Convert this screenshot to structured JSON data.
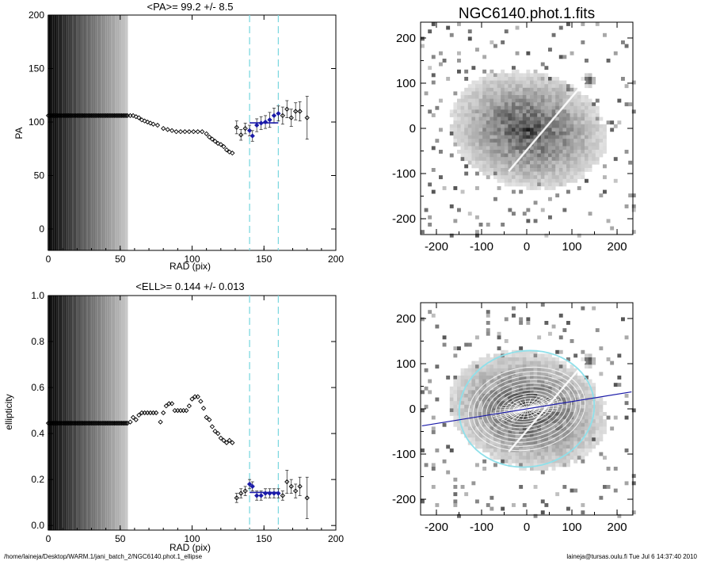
{
  "footer": {
    "left": "/home/laineja/Desktop/WARM.1/jani_batch_2/NGC6140.phot.1_ellipse",
    "right": "laineja@tursas.oulu.fi  Tue Jul  6 14:37:40 2010"
  },
  "colors": {
    "marker": "#000000",
    "fit_line": "#1a1aa8",
    "range_line": "#7fd8e0",
    "ellipse": "#8fe0ea"
  },
  "chart_data": [
    {
      "type": "scatter",
      "title": "<PA>=  99.2 +/-   8.5",
      "xlabel": "RAD (pix)",
      "ylabel": "PA",
      "xlim": [
        0,
        200
      ],
      "ylim": [
        -20,
        200
      ],
      "xticks": [
        "0",
        "50",
        "100",
        "150",
        "200"
      ],
      "yticks": [
        "0",
        "50",
        "100",
        "150",
        "200"
      ],
      "vlines": [
        140,
        160
      ],
      "fit": {
        "x": [
          140,
          160
        ],
        "y": 99.2
      },
      "series": [
        {
          "x": [
            0,
            1,
            2,
            3,
            4,
            5,
            6,
            7,
            8,
            9,
            10,
            11,
            12,
            13,
            14,
            15,
            16,
            17,
            18,
            19,
            20,
            21,
            22,
            23,
            24,
            25,
            26,
            27,
            28,
            29,
            30,
            31,
            32,
            33,
            34,
            35,
            36,
            37,
            38,
            39,
            40,
            41,
            42,
            43,
            44,
            45,
            46,
            47,
            48,
            49,
            50,
            51,
            52,
            53,
            54,
            55
          ],
          "y": [
            106,
            106,
            106,
            106,
            106,
            106,
            106,
            106,
            106,
            106,
            106,
            106,
            106,
            106,
            106,
            106,
            106,
            106,
            106,
            106,
            106,
            106,
            106,
            106,
            106,
            106,
            106,
            106,
            106,
            106,
            106,
            106,
            106,
            106,
            106,
            106,
            106,
            106,
            106,
            106,
            106,
            106,
            106,
            106,
            106,
            106,
            106,
            106,
            106,
            106,
            106,
            106,
            106,
            106,
            106,
            106
          ]
        },
        {
          "x": [
            57,
            59,
            61,
            63,
            65,
            67,
            69,
            71,
            73,
            76,
            80,
            83,
            86,
            89,
            92,
            95,
            98,
            101,
            104,
            107,
            110,
            112,
            114,
            116,
            118,
            120,
            122,
            124,
            126,
            128
          ],
          "y": [
            106,
            106,
            105,
            104,
            102,
            101,
            100,
            99,
            98,
            97,
            94,
            93,
            92,
            91,
            91,
            91,
            91,
            91,
            91,
            91,
            89,
            86,
            84,
            82,
            80,
            79,
            77,
            74,
            72,
            71
          ]
        },
        {
          "x": [
            131,
            134,
            137,
            140,
            142,
            145,
            148,
            151,
            154,
            157,
            160,
            163,
            166,
            169,
            172,
            175,
            180
          ],
          "y": [
            95,
            88,
            94,
            92,
            87,
            97,
            99,
            100,
            102,
            106,
            108,
            106,
            112,
            104,
            110,
            110,
            104
          ],
          "err": [
            6,
            5,
            5,
            5,
            5,
            6,
            6,
            6,
            7,
            7,
            7,
            8,
            8,
            8,
            8,
            9,
            20
          ]
        }
      ]
    },
    {
      "type": "scatter",
      "title": "<ELL>= 0.144 +/-  0.013",
      "xlabel": "RAD (pix)",
      "ylabel": "ellipticity",
      "xlim": [
        0,
        200
      ],
      "ylim": [
        -0.02,
        1.0
      ],
      "xticks": [
        "0",
        "50",
        "100",
        "150",
        "200"
      ],
      "yticks": [
        "0.0",
        "0.2",
        "0.4",
        "0.6",
        "0.8",
        "1.0"
      ],
      "vlines": [
        140,
        160
      ],
      "fit": {
        "x": [
          140,
          160
        ],
        "y": 0.144
      },
      "series": [
        {
          "x": [
            0,
            1,
            2,
            3,
            4,
            5,
            6,
            7,
            8,
            9,
            10,
            11,
            12,
            13,
            14,
            15,
            16,
            17,
            18,
            19,
            20,
            21,
            22,
            23,
            24,
            25,
            26,
            27,
            28,
            29,
            30,
            31,
            32,
            33,
            34,
            35,
            36,
            37,
            38,
            39,
            40,
            41,
            42,
            43,
            44,
            45,
            46,
            47,
            48,
            49,
            50,
            51,
            52,
            53,
            54,
            55
          ],
          "y": [
            0.445,
            0.445,
            0.445,
            0.445,
            0.445,
            0.445,
            0.445,
            0.445,
            0.445,
            0.445,
            0.445,
            0.445,
            0.445,
            0.445,
            0.445,
            0.445,
            0.445,
            0.445,
            0.445,
            0.445,
            0.445,
            0.445,
            0.445,
            0.445,
            0.445,
            0.445,
            0.445,
            0.445,
            0.445,
            0.445,
            0.445,
            0.445,
            0.445,
            0.445,
            0.445,
            0.445,
            0.445,
            0.445,
            0.445,
            0.445,
            0.445,
            0.445,
            0.445,
            0.445,
            0.445,
            0.445,
            0.445,
            0.445,
            0.445,
            0.445,
            0.445,
            0.445,
            0.445,
            0.445,
            0.445,
            0.445
          ]
        },
        {
          "x": [
            57,
            59,
            61,
            63,
            65,
            67,
            69,
            71,
            73,
            75,
            78,
            80,
            82,
            84,
            86,
            88,
            90,
            92,
            94,
            96,
            98,
            100,
            102,
            104,
            106,
            108,
            110,
            112,
            114,
            116,
            118,
            120,
            122,
            124,
            126,
            128
          ],
          "y": [
            0.45,
            0.47,
            0.46,
            0.48,
            0.49,
            0.49,
            0.49,
            0.49,
            0.49,
            0.49,
            0.45,
            0.49,
            0.52,
            0.53,
            0.53,
            0.5,
            0.5,
            0.5,
            0.5,
            0.5,
            0.52,
            0.55,
            0.56,
            0.56,
            0.54,
            0.51,
            0.47,
            0.46,
            0.43,
            0.41,
            0.4,
            0.38,
            0.37,
            0.36,
            0.37,
            0.36
          ]
        },
        {
          "x": [
            131,
            134,
            137,
            140,
            142,
            145,
            148,
            151,
            154,
            157,
            160,
            163,
            166,
            169,
            172,
            175,
            180
          ],
          "y": [
            0.12,
            0.14,
            0.15,
            0.18,
            0.17,
            0.13,
            0.13,
            0.14,
            0.14,
            0.14,
            0.14,
            0.13,
            0.19,
            0.17,
            0.15,
            0.17,
            0.12
          ],
          "err": [
            0.02,
            0.02,
            0.02,
            0.02,
            0.02,
            0.02,
            0.02,
            0.02,
            0.02,
            0.02,
            0.02,
            0.02,
            0.05,
            0.03,
            0.03,
            0.04,
            0.09
          ]
        }
      ]
    },
    {
      "type": "heatmap",
      "title": "NGC6140.phot.1.fits",
      "xlim": [
        -235,
        235
      ],
      "ylim": [
        -235,
        235
      ],
      "xticks": [
        "-200",
        "-100",
        "0",
        "100",
        "200"
      ],
      "yticks": [
        "-200",
        "-100",
        "0",
        "100",
        "200"
      ]
    },
    {
      "type": "heatmap",
      "title": "",
      "xlim": [
        -235,
        235
      ],
      "ylim": [
        -235,
        235
      ],
      "xticks": [
        "-200",
        "-100",
        "0",
        "100",
        "200"
      ],
      "yticks": [
        "-200",
        "-100",
        "0",
        "100",
        "200"
      ],
      "pa_deg": 99.2,
      "ellipticity": 0.144,
      "sma": 150
    }
  ]
}
